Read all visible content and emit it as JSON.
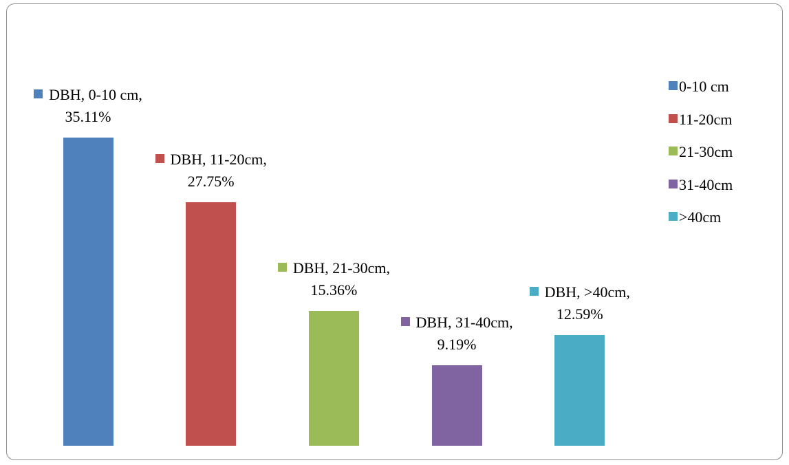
{
  "chart_data": {
    "type": "bar",
    "legend": "right",
    "series": [
      {
        "name": "0-10 cm",
        "color": "#4f81bd",
        "values": [
          35.11
        ],
        "value_labels": [
          "DBH, 0-10 cm, 35.11%"
        ]
      },
      {
        "name": "11-20cm",
        "color": "#c0504d",
        "values": [
          27.75
        ],
        "value_labels": [
          "DBH, 11-20cm, 27.75%"
        ]
      },
      {
        "name": "21-30cm",
        "color": "#9bbb59",
        "values": [
          15.36
        ],
        "value_labels": [
          "DBH, 21-30cm, 15.36%"
        ]
      },
      {
        "name": "31-40cm",
        "color": "#8064a2",
        "values": [
          9.19
        ],
        "value_labels": [
          "DBH, 31-40cm, 9.19%"
        ]
      },
      {
        "name": ">40cm",
        "color": "#4bacc6",
        "values": [
          12.59
        ],
        "value_labels": [
          "DBH, >40cm, 12.59%"
        ]
      }
    ]
  }
}
